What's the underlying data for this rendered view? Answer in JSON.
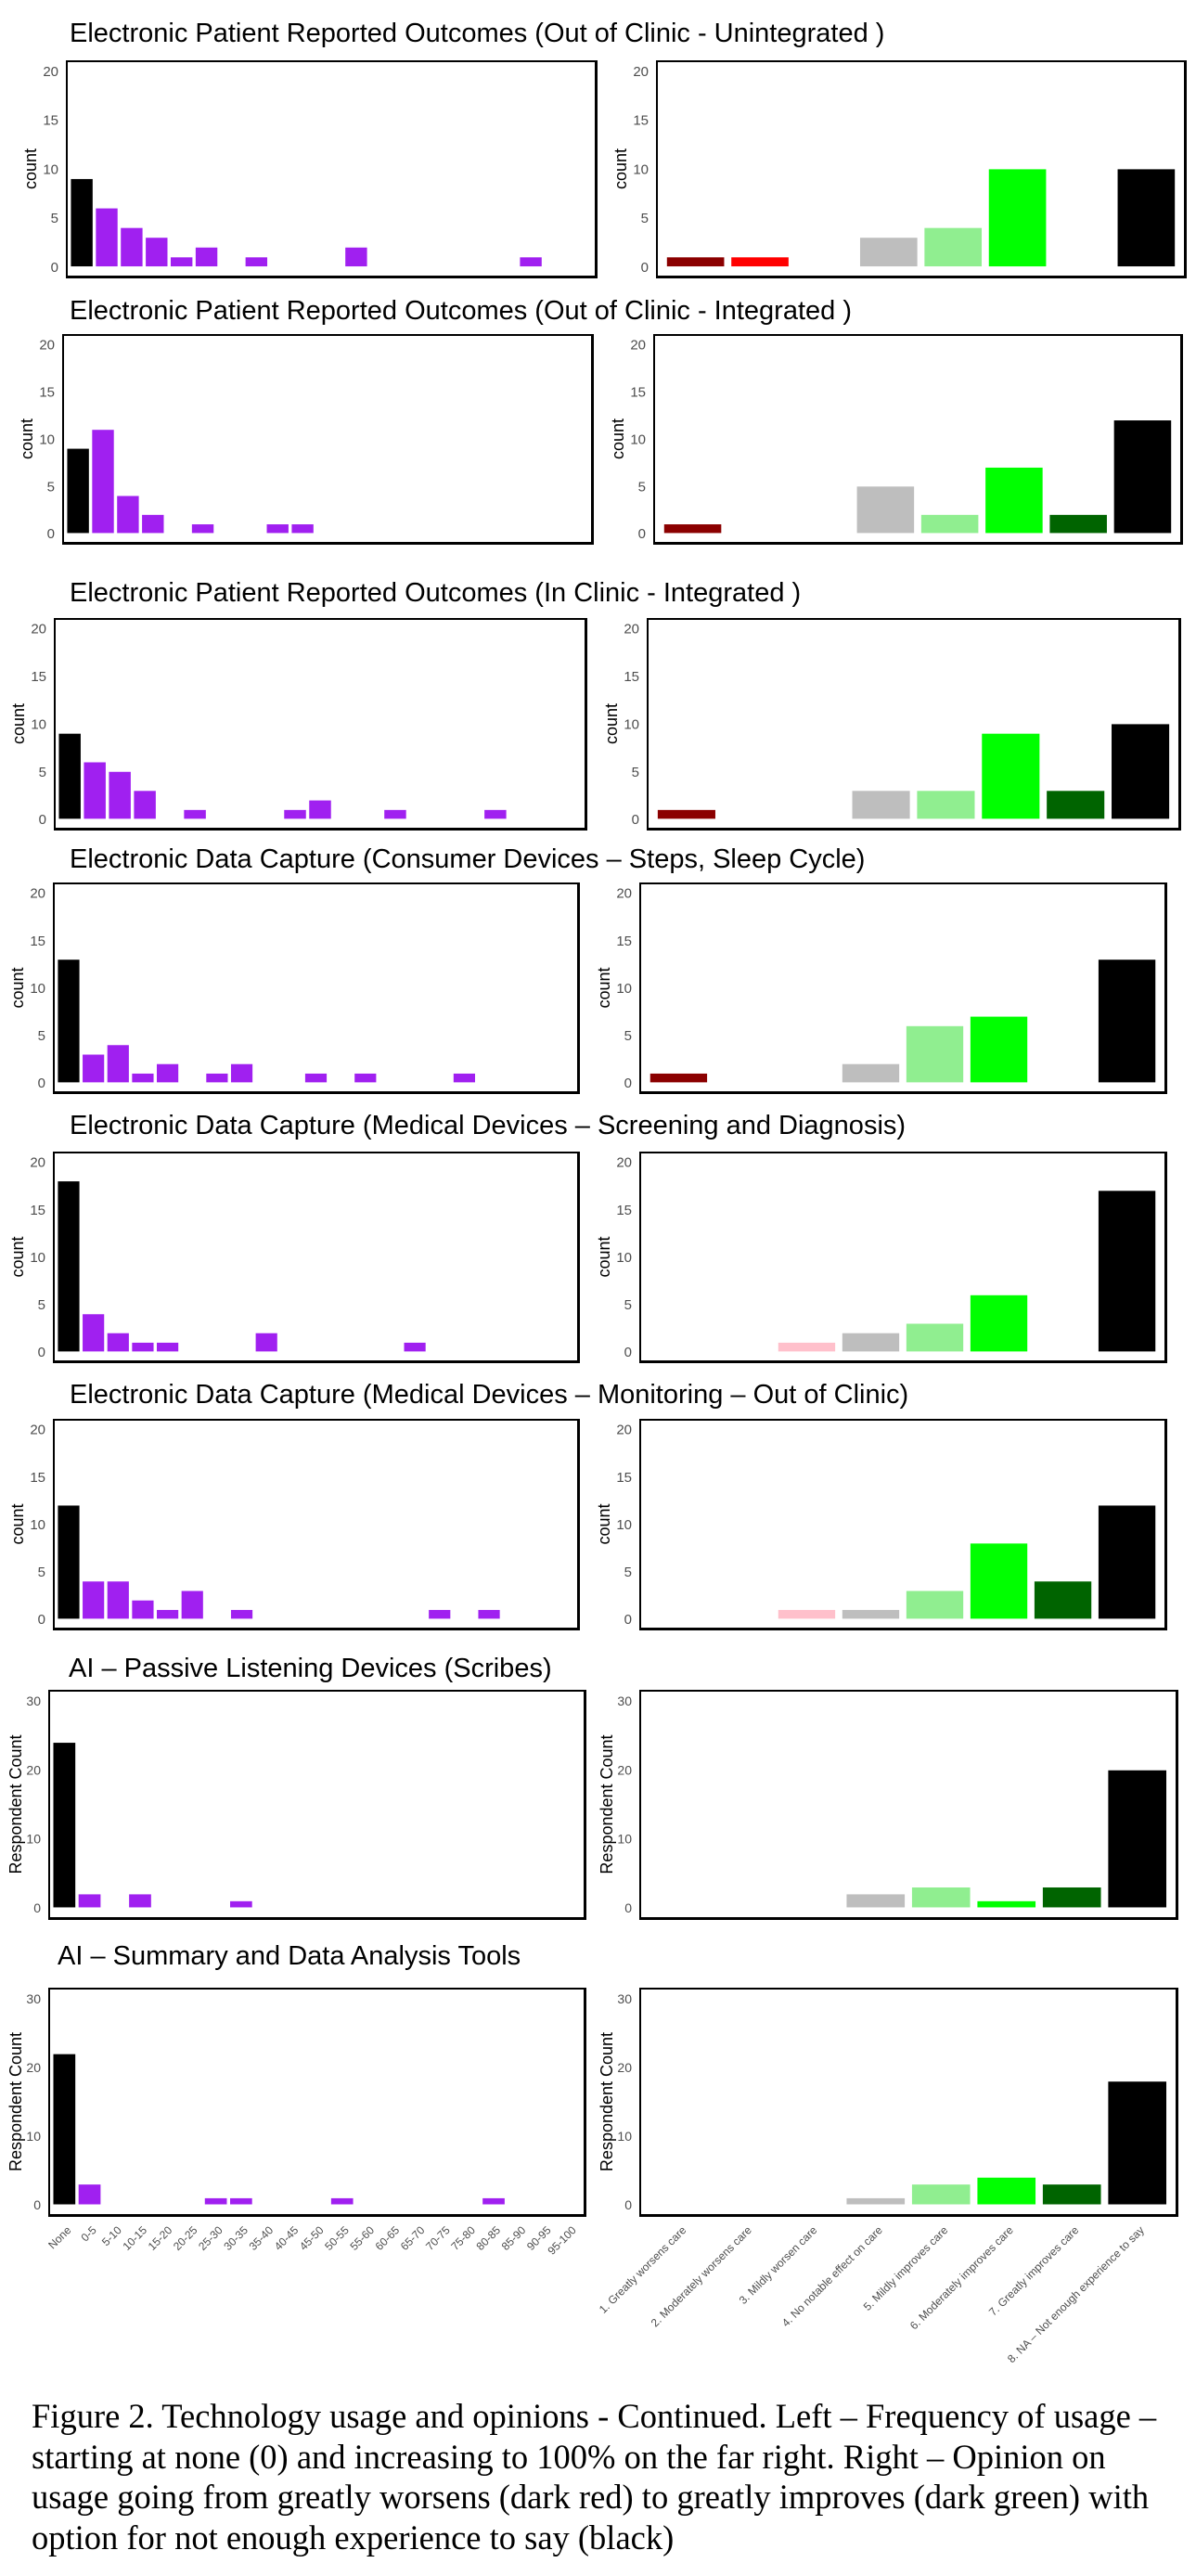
{
  "figure": {
    "caption_lines": [
      "Figure 2. Technology usage and opinions - Continued. Left – Frequency of usage –",
      "starting at none (0) and increasing to 100% on the far right. Right – Opinion on",
      "usage going from greatly worsens (dark red) to greatly improves (dark green) with",
      "option for not enough experience to say (black)"
    ]
  },
  "chart_data": {
    "type": "bar",
    "grid": false,
    "usage_categories": [
      "None",
      "0-5",
      "5-10",
      "10-15",
      "15-20",
      "20-25",
      "25-30",
      "30-35",
      "35-40",
      "40-45",
      "45-50",
      "50-55",
      "55-60",
      "60-65",
      "65-70",
      "70-75",
      "75-80",
      "80-85",
      "85-90",
      "90-95",
      "95-100"
    ],
    "opinion_categories": [
      "1. Greatly worsens care",
      "2. Moderately worsens care",
      "3. Mildly worsen care",
      "4. No notable effect on care",
      "5. Mildly improves care",
      "6. Moderately improves care",
      "7. Greatly improves care",
      "8. NA – Not enough experience to say"
    ],
    "usage_colors": {
      "none": "#000000",
      "usage": "#A020F0"
    },
    "opinion_colors": [
      "#8B0000",
      "#FF0000",
      "#FFC0CB",
      "#BEBEBE",
      "#90EE90",
      "#00FF00",
      "#006400",
      "#000000"
    ],
    "charts": [
      {
        "title": "Electronic Patient Reported Outcomes (Out of Clinic - Unintegrated )",
        "usage": {
          "ylabel": "count",
          "ylim": [
            0,
            20
          ],
          "yticks": [
            0,
            5,
            10,
            15,
            20
          ],
          "show_xlabels": false,
          "values": [
            9,
            6,
            4,
            3,
            1,
            2,
            0,
            1,
            0,
            0,
            0,
            2,
            0,
            0,
            0,
            0,
            0,
            0,
            1,
            0,
            0
          ]
        },
        "opinion": {
          "ylabel": "count",
          "ylim": [
            0,
            20
          ],
          "yticks": [
            0,
            5,
            10,
            15,
            20
          ],
          "show_xlabels": false,
          "values": [
            1,
            1,
            0,
            3,
            4,
            10,
            0,
            10
          ]
        }
      },
      {
        "title": "Electronic Patient Reported Outcomes (Out of Clinic - Integrated )",
        "usage": {
          "ylabel": "count",
          "ylim": [
            0,
            20
          ],
          "yticks": [
            0,
            5,
            10,
            15,
            20
          ],
          "show_xlabels": false,
          "values": [
            9,
            11,
            4,
            2,
            0,
            1,
            0,
            0,
            1,
            1,
            0,
            0,
            0,
            0,
            0,
            0,
            0,
            0,
            0,
            0,
            0
          ]
        },
        "opinion": {
          "ylabel": "count",
          "ylim": [
            0,
            20
          ],
          "yticks": [
            0,
            5,
            10,
            15,
            20
          ],
          "show_xlabels": false,
          "values": [
            1,
            0,
            0,
            5,
            2,
            7,
            2,
            12
          ]
        }
      },
      {
        "title": "Electronic Patient Reported Outcomes (In Clinic - Integrated )",
        "usage": {
          "ylabel": "count",
          "ylim": [
            0,
            20
          ],
          "yticks": [
            0,
            5,
            10,
            15,
            20
          ],
          "show_xlabels": false,
          "values": [
            9,
            6,
            5,
            3,
            0,
            1,
            0,
            0,
            0,
            1,
            2,
            0,
            0,
            1,
            0,
            0,
            0,
            1,
            0,
            0,
            0
          ]
        },
        "opinion": {
          "ylabel": "count",
          "ylim": [
            0,
            20
          ],
          "yticks": [
            0,
            5,
            10,
            15,
            20
          ],
          "show_xlabels": false,
          "values": [
            1,
            0,
            0,
            3,
            3,
            9,
            3,
            10
          ]
        }
      },
      {
        "title": "Electronic Data Capture (Consumer Devices – Steps, Sleep Cycle)",
        "usage": {
          "ylabel": "count",
          "ylim": [
            0,
            20
          ],
          "yticks": [
            0,
            5,
            10,
            15,
            20
          ],
          "show_xlabels": false,
          "values": [
            13,
            3,
            4,
            1,
            2,
            0,
            1,
            2,
            0,
            0,
            1,
            0,
            1,
            0,
            0,
            0,
            1,
            0,
            0,
            0,
            0
          ]
        },
        "opinion": {
          "ylabel": "count",
          "ylim": [
            0,
            20
          ],
          "yticks": [
            0,
            5,
            10,
            15,
            20
          ],
          "show_xlabels": false,
          "values": [
            1,
            0,
            0,
            2,
            6,
            7,
            0,
            13
          ]
        }
      },
      {
        "title": "Electronic Data Capture (Medical Devices – Screening and Diagnosis)",
        "usage": {
          "ylabel": "count",
          "ylim": [
            0,
            20
          ],
          "yticks": [
            0,
            5,
            10,
            15,
            20
          ],
          "show_xlabels": false,
          "values": [
            18,
            4,
            2,
            1,
            1,
            0,
            0,
            0,
            2,
            0,
            0,
            0,
            0,
            0,
            1,
            0,
            0,
            0,
            0,
            0,
            0
          ]
        },
        "opinion": {
          "ylabel": "count",
          "ylim": [
            0,
            20
          ],
          "yticks": [
            0,
            5,
            10,
            15,
            20
          ],
          "show_xlabels": false,
          "values": [
            0,
            0,
            1,
            2,
            3,
            6,
            0,
            17
          ]
        }
      },
      {
        "title": "Electronic Data Capture (Medical Devices – Monitoring – Out of Clinic)",
        "usage": {
          "ylabel": "count",
          "ylim": [
            0,
            20
          ],
          "yticks": [
            0,
            5,
            10,
            15,
            20
          ],
          "show_xlabels": false,
          "values": [
            12,
            4,
            4,
            2,
            1,
            3,
            0,
            1,
            0,
            0,
            0,
            0,
            0,
            0,
            0,
            1,
            0,
            1,
            0,
            0,
            0
          ]
        },
        "opinion": {
          "ylabel": "count",
          "ylim": [
            0,
            20
          ],
          "yticks": [
            0,
            5,
            10,
            15,
            20
          ],
          "show_xlabels": false,
          "values": [
            0,
            0,
            1,
            1,
            3,
            8,
            4,
            12
          ]
        }
      },
      {
        "title": "AI – Passive Listening Devices (Scribes)",
        "usage": {
          "ylabel": "Respondent Count",
          "ylim": [
            0,
            30
          ],
          "yticks": [
            0,
            10,
            20,
            30
          ],
          "show_xlabels": false,
          "values": [
            24,
            2,
            0,
            2,
            0,
            0,
            0,
            1,
            0,
            0,
            0,
            0,
            0,
            0,
            0,
            0,
            0,
            0,
            0,
            0,
            0
          ]
        },
        "opinion": {
          "ylabel": "Respondent Count",
          "ylim": [
            0,
            30
          ],
          "yticks": [
            0,
            10,
            20,
            30
          ],
          "show_xlabels": false,
          "values": [
            0,
            0,
            0,
            2,
            3,
            1,
            3,
            20
          ]
        }
      },
      {
        "title": "AI – Summary and Data Analysis Tools",
        "usage": {
          "ylabel": "Respondent Count",
          "ylim": [
            0,
            30
          ],
          "yticks": [
            0,
            10,
            20,
            30
          ],
          "show_xlabels": true,
          "values": [
            22,
            3,
            0,
            0,
            0,
            0,
            1,
            1,
            0,
            0,
            0,
            1,
            0,
            0,
            0,
            0,
            0,
            1,
            0,
            0,
            0
          ]
        },
        "opinion": {
          "ylabel": "Respondent Count",
          "ylim": [
            0,
            30
          ],
          "yticks": [
            0,
            10,
            20,
            30
          ],
          "show_xlabels": true,
          "values": [
            0,
            0,
            0,
            1,
            3,
            4,
            3,
            18
          ]
        }
      }
    ]
  }
}
